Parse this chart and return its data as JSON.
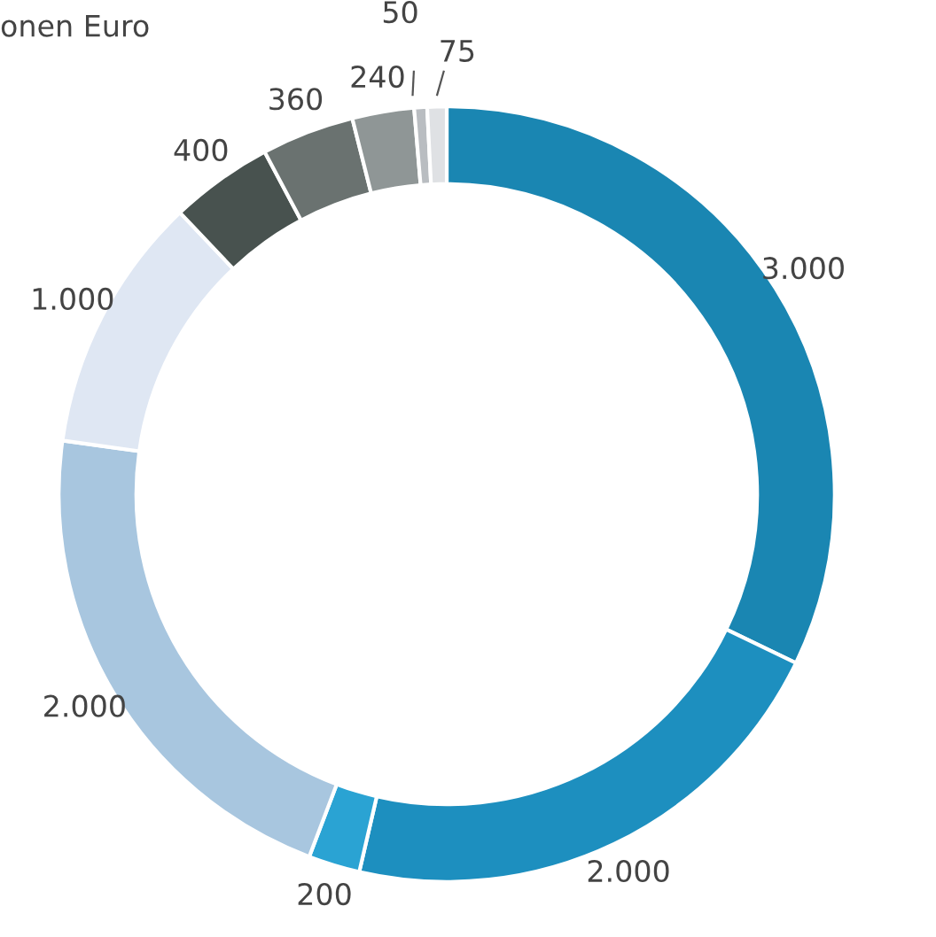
{
  "chart_data": {
    "type": "donut",
    "title": "onen Euro",
    "categories": [
      null,
      null,
      null,
      null,
      null,
      null,
      null,
      null,
      null,
      null
    ],
    "values": [
      3000,
      2000,
      200,
      2000,
      1000,
      400,
      360,
      240,
      50,
      75
    ],
    "value_labels": [
      "3.000",
      "2.000",
      "200",
      "2.000",
      "1.000",
      "400",
      "360",
      "240",
      "50",
      "75"
    ],
    "colors": [
      "#1a86b2",
      "#1d8fbf",
      "#2aa3d3",
      "#a8c6df",
      "#dfe7f3",
      "#48524f",
      "#6a7270",
      "#8f9696",
      "#b9bdc1",
      "#dfe1e4"
    ]
  }
}
